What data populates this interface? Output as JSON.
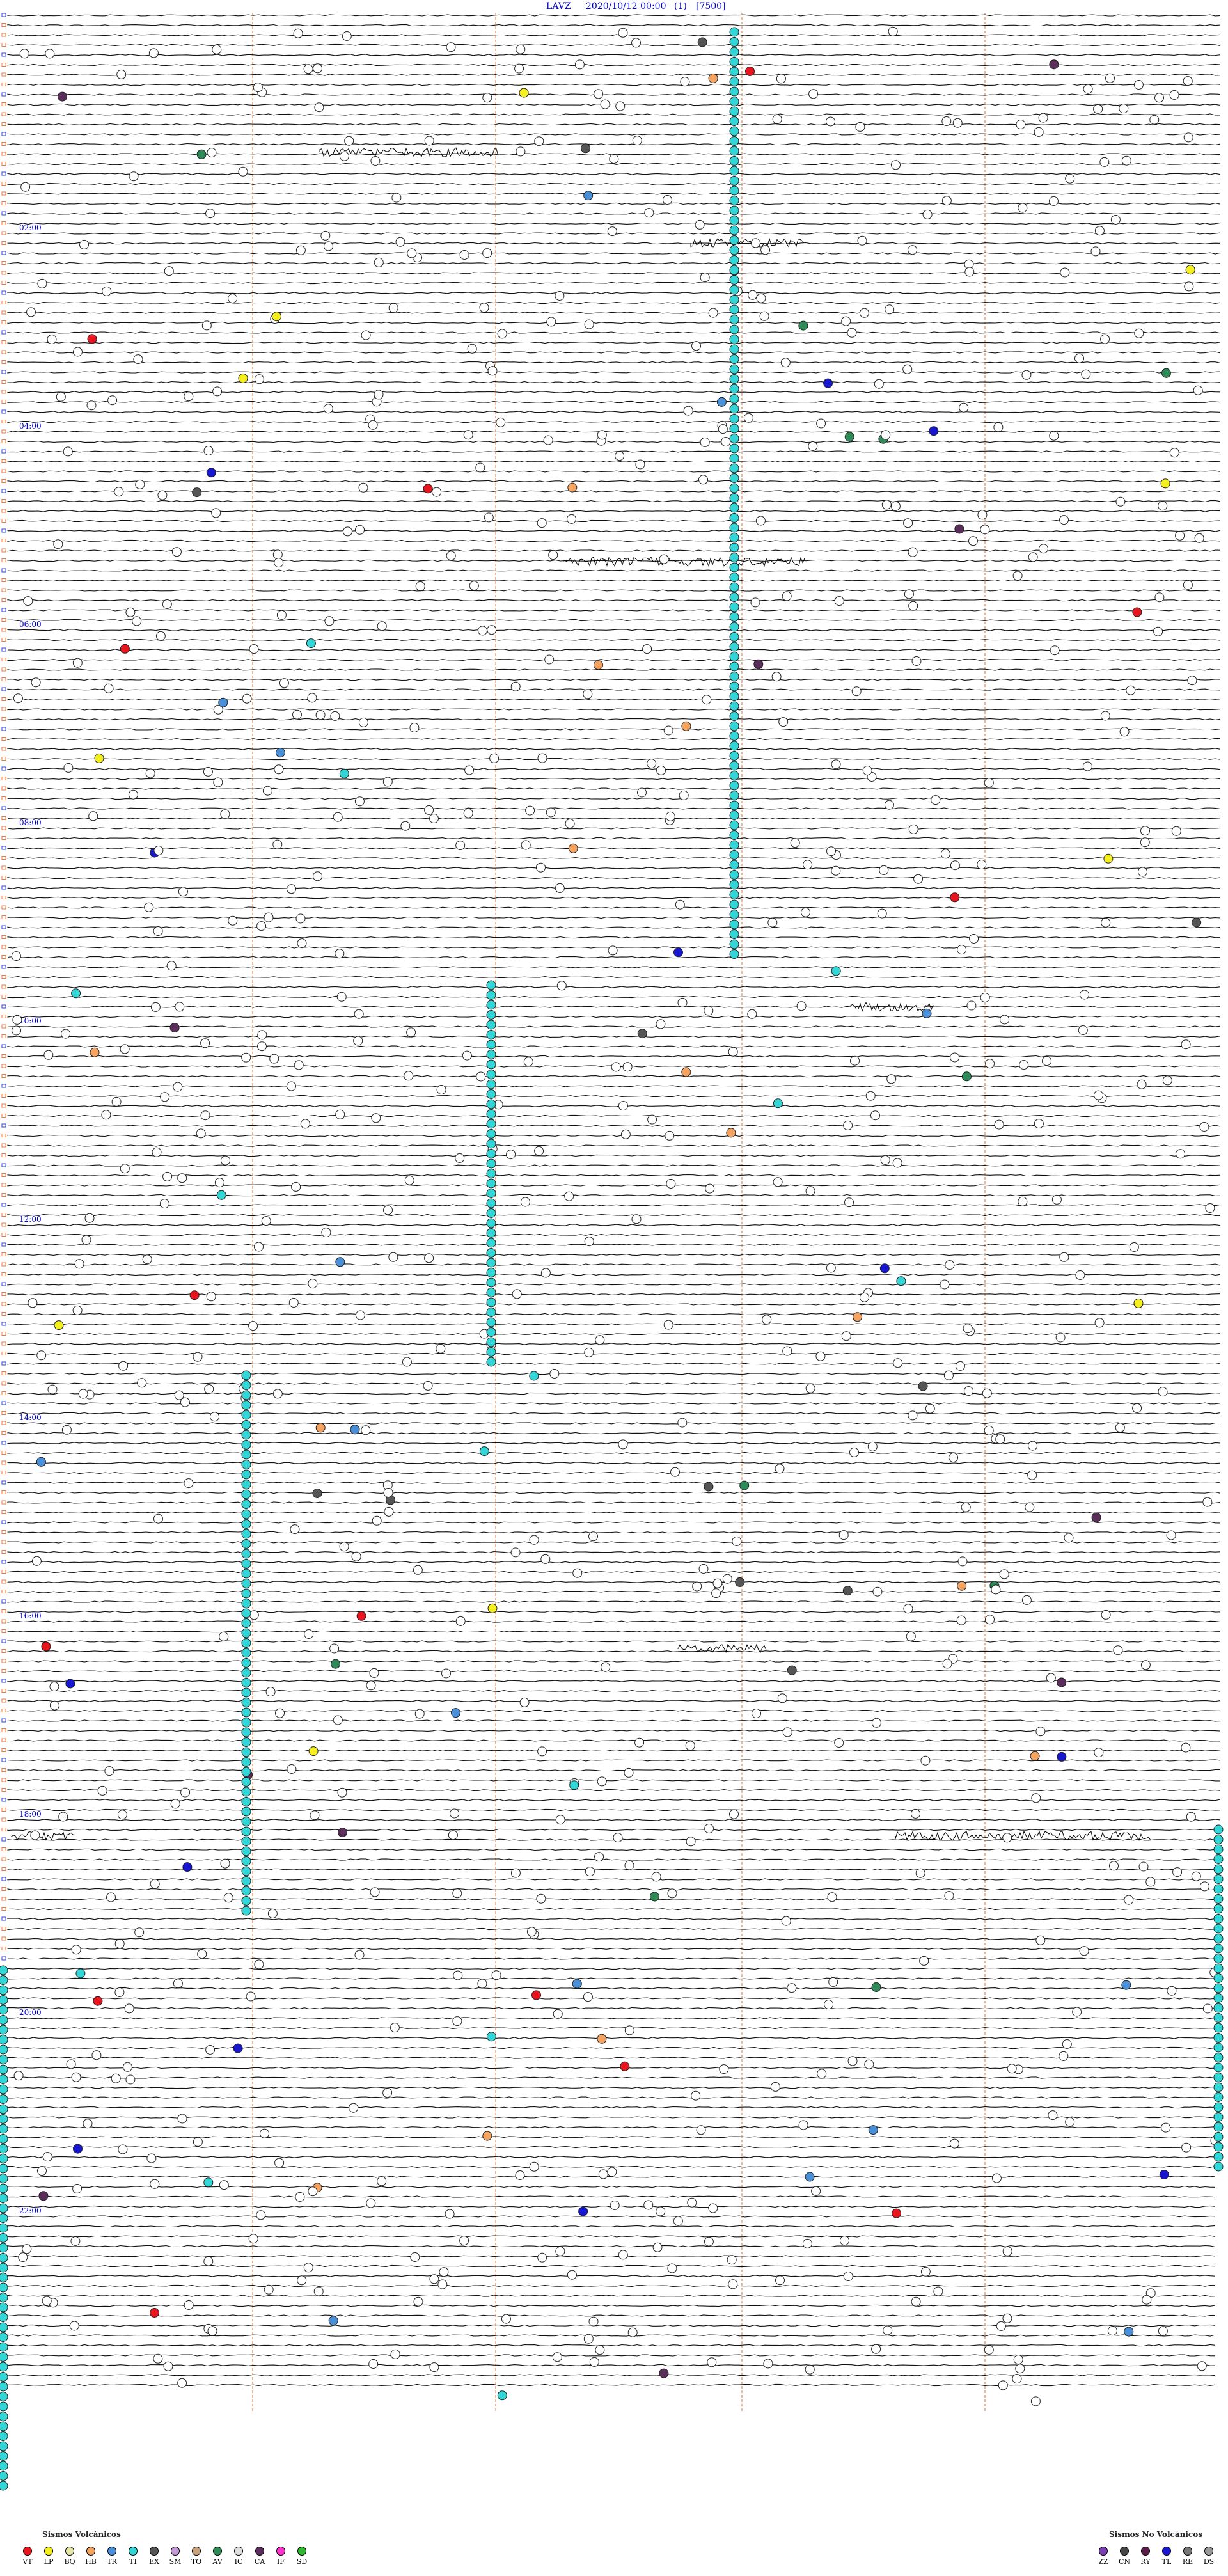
{
  "header": {
    "station": "LAVZ",
    "datetime": "2020/10/12 00:00",
    "component": "(1)",
    "scale": "[7500]"
  },
  "time_labels": [
    "02:00",
    "04:00",
    "06:00",
    "08:00",
    "10:00",
    "12:00",
    "14:00",
    "16:00",
    "18:00",
    "20:00",
    "22:00"
  ],
  "legend_volcanic": {
    "title": "Sismos Volcánicos",
    "items": [
      {
        "code": "VT",
        "color": "#e8141e"
      },
      {
        "code": "LP",
        "color": "#f5ef1f"
      },
      {
        "code": "BQ",
        "color": "#e7e7a8"
      },
      {
        "code": "HB",
        "color": "#f4a460"
      },
      {
        "code": "TR",
        "color": "#4a90d9"
      },
      {
        "code": "TI",
        "color": "#33d6d6"
      },
      {
        "code": "EX",
        "color": "#555555"
      },
      {
        "code": "SM",
        "color": "#c49ad6"
      },
      {
        "code": "TO",
        "color": "#c8a27a"
      },
      {
        "code": "AV",
        "color": "#2e8b57"
      },
      {
        "code": "IC",
        "color": "#e0e0e0"
      },
      {
        "code": "CA",
        "color": "#5a2d5a"
      },
      {
        "code": "IF",
        "color": "#ff33cc"
      },
      {
        "code": "SD",
        "color": "#32b832"
      }
    ]
  },
  "legend_nonvolcanic": {
    "title": "Sismos No Volcánicos",
    "items": [
      {
        "code": "ZZ",
        "color": "#7a3fb0"
      },
      {
        "code": "CN",
        "color": "#444444"
      },
      {
        "code": "RY",
        "color": "#5a1d4a"
      },
      {
        "code": "TL",
        "color": "#1717d0"
      },
      {
        "code": "RE",
        "color": "#777777"
      },
      {
        "code": "DS",
        "color": "#999999"
      }
    ]
  }
}
